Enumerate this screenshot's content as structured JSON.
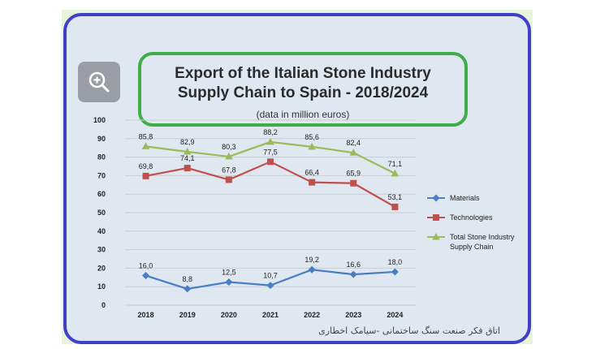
{
  "zoom_icon": "zoom-in-icon",
  "footer_text": "اتاق فکر صنعت سنگ ساختمانی -سیامک اخطاری",
  "chart_data": {
    "type": "line",
    "title_lines": [
      "Export of the Italian Stone Industry",
      "Supply Chain to Spain - 2018/2024"
    ],
    "subtitle": "(data in million euros)",
    "categories": [
      "2018",
      "2019",
      "2020",
      "2021",
      "2022",
      "2023",
      "2024"
    ],
    "ylim": [
      0,
      100
    ],
    "yticks": [
      0,
      10,
      20,
      30,
      40,
      50,
      60,
      70,
      80,
      90,
      100
    ],
    "grid": true,
    "legend_position": "right",
    "series": [
      {
        "name": "Materials",
        "color": "#4a7ec3",
        "marker": "diamond",
        "values": [
          16.0,
          8.8,
          12.5,
          10.7,
          19.2,
          16.6,
          18.0
        ],
        "labels": [
          "16,0",
          "8,8",
          "12,5",
          "10,7",
          "19,2",
          "16,6",
          "18,0"
        ]
      },
      {
        "name": "Technologies",
        "color": "#c0504d",
        "marker": "square",
        "values": [
          69.8,
          74.1,
          67.8,
          77.5,
          66.4,
          65.9,
          53.1
        ],
        "labels": [
          "69,8",
          "74,1",
          "67,8",
          "77,5",
          "66,4",
          "65,9",
          "53,1"
        ]
      },
      {
        "name": "Total Stone Industry Supply Chain",
        "legend_lines": [
          "Total Stone Industry",
          "Supply Chain"
        ],
        "color": "#9bbb59",
        "marker": "triangle",
        "values": [
          85.8,
          82.9,
          80.3,
          88.2,
          85.6,
          82.4,
          71.1
        ],
        "labels": [
          "85,8",
          "82,9",
          "80,3",
          "88,2",
          "85,6",
          "82,4",
          "71,1"
        ]
      }
    ]
  }
}
